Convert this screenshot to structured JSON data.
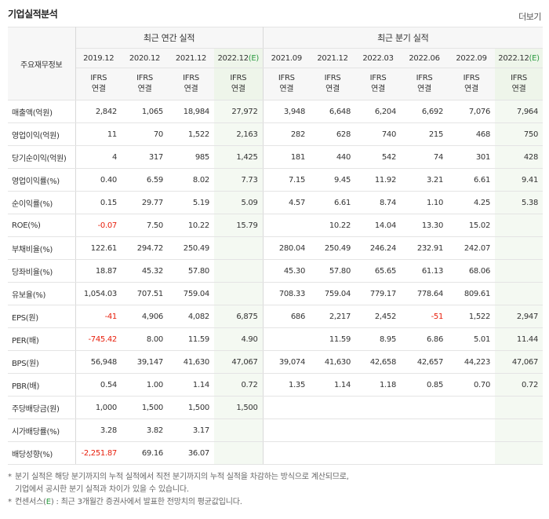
{
  "header": {
    "title": "기업실적분석",
    "more": "더보기"
  },
  "table": {
    "row_header": "주요재무정보",
    "groups": {
      "annual": "최근 연간 실적",
      "quarterly": "최근 분기 실적"
    },
    "ifrs_line1": "IFRS",
    "ifrs_line2": "연결",
    "est_mark": "(E)",
    "periods": [
      {
        "label": "2019.12",
        "est": false
      },
      {
        "label": "2020.12",
        "est": false
      },
      {
        "label": "2021.12",
        "est": false
      },
      {
        "label": "2022.12",
        "est": true
      },
      {
        "label": "2021.09",
        "est": false
      },
      {
        "label": "2021.12",
        "est": false
      },
      {
        "label": "2022.03",
        "est": false
      },
      {
        "label": "2022.06",
        "est": false
      },
      {
        "label": "2022.09",
        "est": false
      },
      {
        "label": "2022.12",
        "est": true
      }
    ],
    "rows": [
      {
        "label": "매출액(억원)",
        "values": [
          "2,842",
          "1,065",
          "18,984",
          "27,972",
          "3,948",
          "6,648",
          "6,204",
          "6,692",
          "7,076",
          "7,964"
        ],
        "group_start": true
      },
      {
        "label": "영업이익(억원)",
        "values": [
          "11",
          "70",
          "1,522",
          "2,163",
          "282",
          "628",
          "740",
          "215",
          "468",
          "750"
        ]
      },
      {
        "label": "당기순이익(억원)",
        "values": [
          "4",
          "317",
          "985",
          "1,425",
          "181",
          "440",
          "542",
          "74",
          "301",
          "428"
        ]
      },
      {
        "label": "영업이익률(%)",
        "values": [
          "0.40",
          "6.59",
          "8.02",
          "7.73",
          "7.15",
          "9.45",
          "11.92",
          "3.21",
          "6.61",
          "9.41"
        ],
        "group_start": true
      },
      {
        "label": "순이익률(%)",
        "values": [
          "0.15",
          "29.77",
          "5.19",
          "5.09",
          "4.57",
          "6.61",
          "8.74",
          "1.10",
          "4.25",
          "5.38"
        ]
      },
      {
        "label": "ROE(%)",
        "values": [
          "-0.07",
          "7.50",
          "10.22",
          "15.79",
          "",
          "10.22",
          "14.04",
          "13.30",
          "15.02",
          ""
        ]
      },
      {
        "label": "부채비율(%)",
        "values": [
          "122.61",
          "294.72",
          "250.49",
          "",
          "280.04",
          "250.49",
          "246.24",
          "232.91",
          "242.07",
          ""
        ],
        "group_start": true
      },
      {
        "label": "당좌비율(%)",
        "values": [
          "18.87",
          "45.32",
          "57.80",
          "",
          "45.30",
          "57.80",
          "65.65",
          "61.13",
          "68.06",
          ""
        ]
      },
      {
        "label": "유보율(%)",
        "values": [
          "1,054.03",
          "707.51",
          "759.04",
          "",
          "708.33",
          "759.04",
          "779.17",
          "778.64",
          "809.61",
          ""
        ]
      },
      {
        "label": "EPS(원)",
        "values": [
          "-41",
          "4,906",
          "4,082",
          "6,875",
          "686",
          "2,217",
          "2,452",
          "-51",
          "1,522",
          "2,947"
        ],
        "group_start": true
      },
      {
        "label": "PER(배)",
        "values": [
          "-745.42",
          "8.00",
          "11.59",
          "4.90",
          "",
          "11.59",
          "8.95",
          "6.86",
          "5.01",
          "11.44"
        ]
      },
      {
        "label": "BPS(원)",
        "values": [
          "56,948",
          "39,147",
          "41,630",
          "47,067",
          "39,074",
          "41,630",
          "42,658",
          "42,657",
          "44,223",
          "47,067"
        ]
      },
      {
        "label": "PBR(배)",
        "values": [
          "0.54",
          "1.00",
          "1.14",
          "0.72",
          "1.35",
          "1.14",
          "1.18",
          "0.85",
          "0.70",
          "0.72"
        ]
      },
      {
        "label": "주당배당금(원)",
        "values": [
          "1,000",
          "1,500",
          "1,500",
          "1,500",
          "",
          "",
          "",
          "",
          "",
          ""
        ],
        "group_start": true
      },
      {
        "label": "시가배당률(%)",
        "values": [
          "3.28",
          "3.82",
          "3.17",
          "",
          "",
          "",
          "",
          "",
          "",
          ""
        ]
      },
      {
        "label": "배당성향(%)",
        "values": [
          "-2,251.87",
          "69.16",
          "36.07",
          "",
          "",
          "",
          "",
          "",
          "",
          ""
        ]
      }
    ]
  },
  "notes": {
    "line1": "분기 실적은 해당 분기까지의 누적 실적에서 직전 분기까지의 누적 실적을 차감하는 방식으로 계산되므로,",
    "line2": "기업에서 공시한 분기 실적과 차이가 있을 수 있습니다.",
    "line3_a": "컨센서스(",
    "line3_e": "E",
    "line3_b": ") : 최근 3개월간 증권사에서 발표한 전망치의 평균값입니다.",
    "bullet": "*"
  },
  "colors": {
    "negative": "#e8200d",
    "ifrs": "#ec6a0b",
    "estimate": "#2a9a3f"
  }
}
